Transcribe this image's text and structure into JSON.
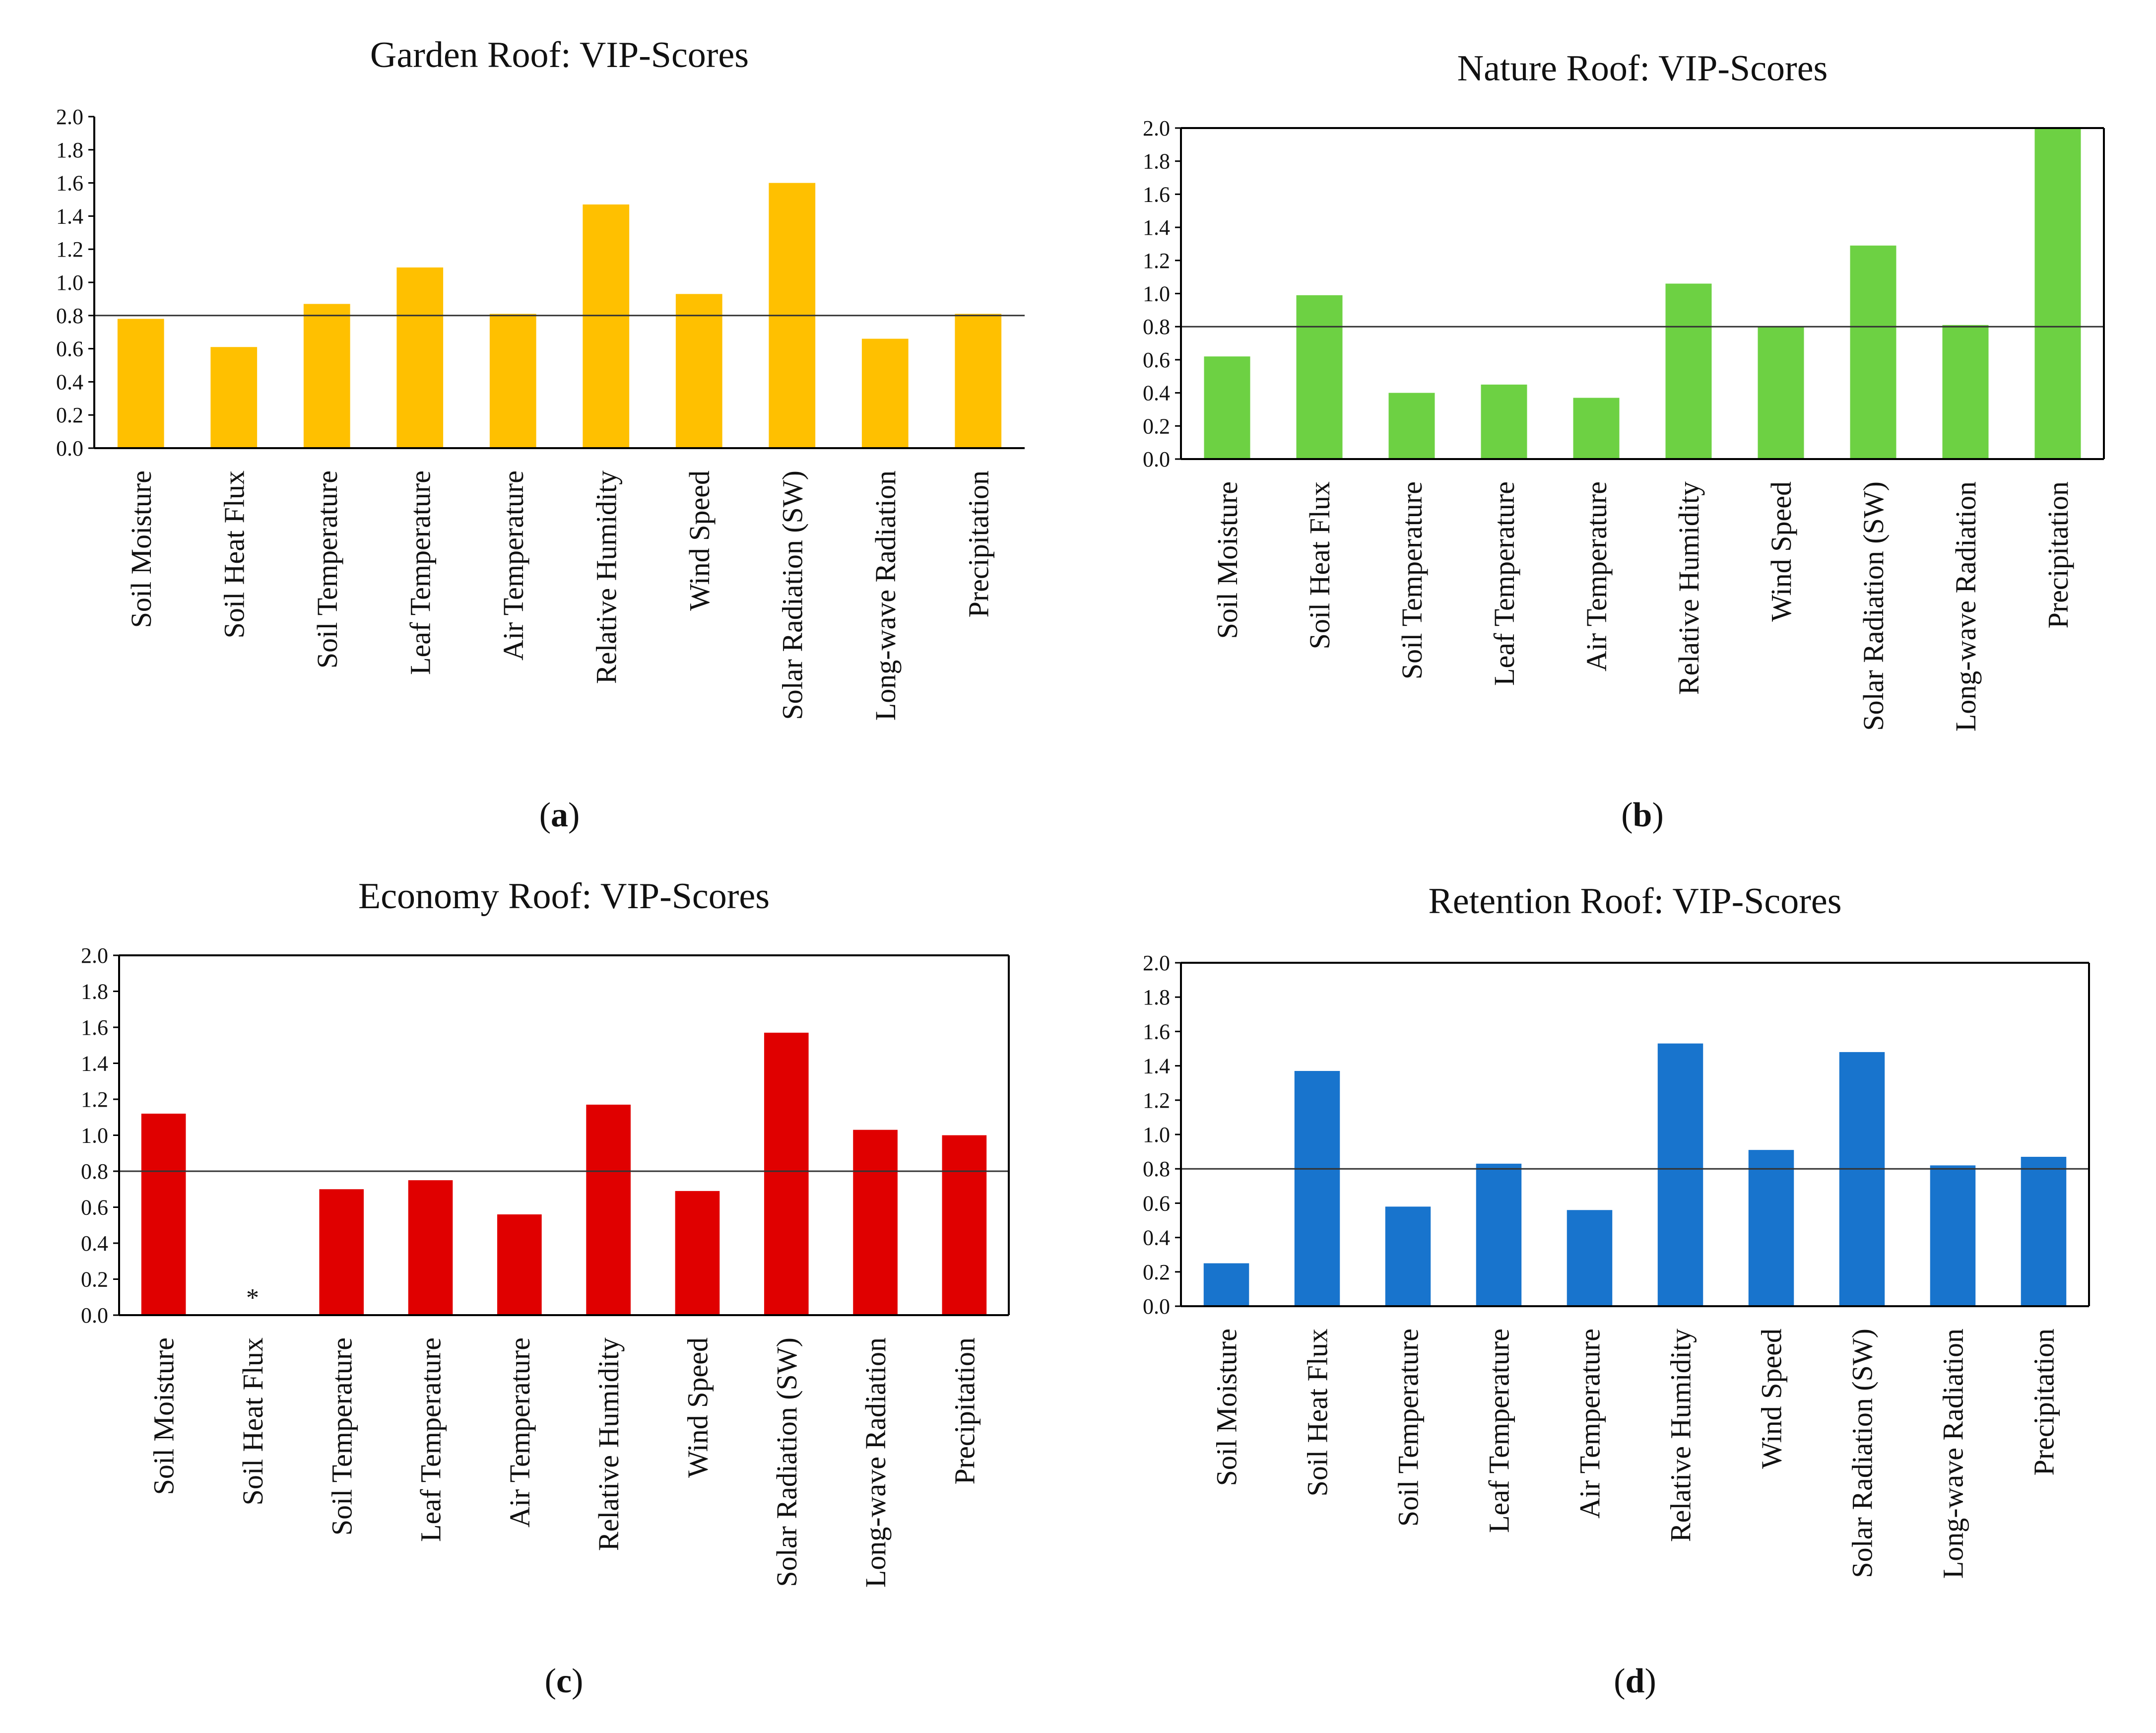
{
  "figure": {
    "captions": [
      {
        "open": "(",
        "letter": "a",
        "close": ")"
      },
      {
        "open": "(",
        "letter": "b",
        "close": ")"
      },
      {
        "open": "(",
        "letter": "c",
        "close": ")"
      },
      {
        "open": "(",
        "letter": "d",
        "close": ")"
      }
    ]
  },
  "chart_data": [
    {
      "type": "bar",
      "title": "Garden Roof: VIP-Scores",
      "xlabel": "",
      "ylabel": "",
      "ylim": [
        0,
        2.0
      ],
      "yticks": [
        "0.0",
        "0.2",
        "0.4",
        "0.6",
        "0.8",
        "1.0",
        "1.2",
        "1.4",
        "1.6",
        "1.8",
        "2.0"
      ],
      "reference_line": 0.8,
      "color": "#FFC000",
      "categories": [
        "Soil Moisture",
        "Soil Heat Flux",
        "Soil Temperature",
        "Leaf Temperature",
        "Air Temperature",
        "Relative Humidity",
        "Wind Speed",
        "Solar Radiation (SW)",
        "Long-wave Radiation",
        "Precipitation"
      ],
      "values": [
        0.78,
        0.61,
        0.87,
        1.09,
        0.81,
        1.47,
        0.93,
        1.6,
        0.66,
        0.81
      ],
      "annotations": []
    },
    {
      "type": "bar",
      "title": "Nature Roof: VIP-Scores",
      "xlabel": "",
      "ylabel": "",
      "ylim": [
        0,
        2.0
      ],
      "yticks": [
        "0.0",
        "0.2",
        "0.4",
        "0.6",
        "0.8",
        "1.0",
        "1.2",
        "1.4",
        "1.6",
        "1.8",
        "2.0"
      ],
      "reference_line": 0.8,
      "color": "#6DD143",
      "categories": [
        "Soil Moisture",
        "Soil Heat Flux",
        "Soil Temperature",
        "Leaf Temperature",
        "Air Temperature",
        "Relative Humidity",
        "Wind Speed",
        "Solar Radiation (SW)",
        "Long-wave Radiation",
        "Precipitation"
      ],
      "values": [
        0.62,
        0.99,
        0.4,
        0.45,
        0.37,
        1.06,
        0.8,
        1.29,
        0.81,
        2.0
      ],
      "annotations": []
    },
    {
      "type": "bar",
      "title": "Economy Roof: VIP-Scores",
      "xlabel": "",
      "ylabel": "",
      "ylim": [
        0,
        2.0
      ],
      "yticks": [
        "0.0",
        "0.2",
        "0.4",
        "0.6",
        "0.8",
        "1.0",
        "1.2",
        "1.4",
        "1.6",
        "1.8",
        "2.0"
      ],
      "reference_line": 0.8,
      "color": "#E00000",
      "categories": [
        "Soil Moisture",
        "Soil Heat Flux",
        "Soil Temperature",
        "Leaf Temperature",
        "Air Temperature",
        "Relative Humidity",
        "Wind Speed",
        "Solar Radiation (SW)",
        "Long-wave Radiation",
        "Precipitation"
      ],
      "values": [
        1.12,
        0.0,
        0.7,
        0.75,
        0.56,
        1.17,
        0.69,
        1.57,
        1.03,
        1.0
      ],
      "annotations": [
        {
          "category": "Soil Heat Flux",
          "text": "*"
        }
      ]
    },
    {
      "type": "bar",
      "title": "Retention Roof: VIP-Scores",
      "xlabel": "",
      "ylabel": "",
      "ylim": [
        0,
        2.0
      ],
      "yticks": [
        "0.0",
        "0.2",
        "0.4",
        "0.6",
        "0.8",
        "1.0",
        "1.2",
        "1.4",
        "1.6",
        "1.8",
        "2.0"
      ],
      "reference_line": 0.8,
      "color": "#1874CD",
      "categories": [
        "Soil Moisture",
        "Soil Heat Flux",
        "Soil Temperature",
        "Leaf Temperature",
        "Air Temperature",
        "Relative Humidity",
        "Wind Speed",
        "Solar Radiation (SW)",
        "Long-wave Radiation",
        "Precipitation"
      ],
      "values": [
        0.25,
        1.37,
        0.58,
        0.83,
        0.56,
        1.53,
        0.91,
        1.48,
        0.82,
        0.87
      ],
      "annotations": []
    }
  ]
}
